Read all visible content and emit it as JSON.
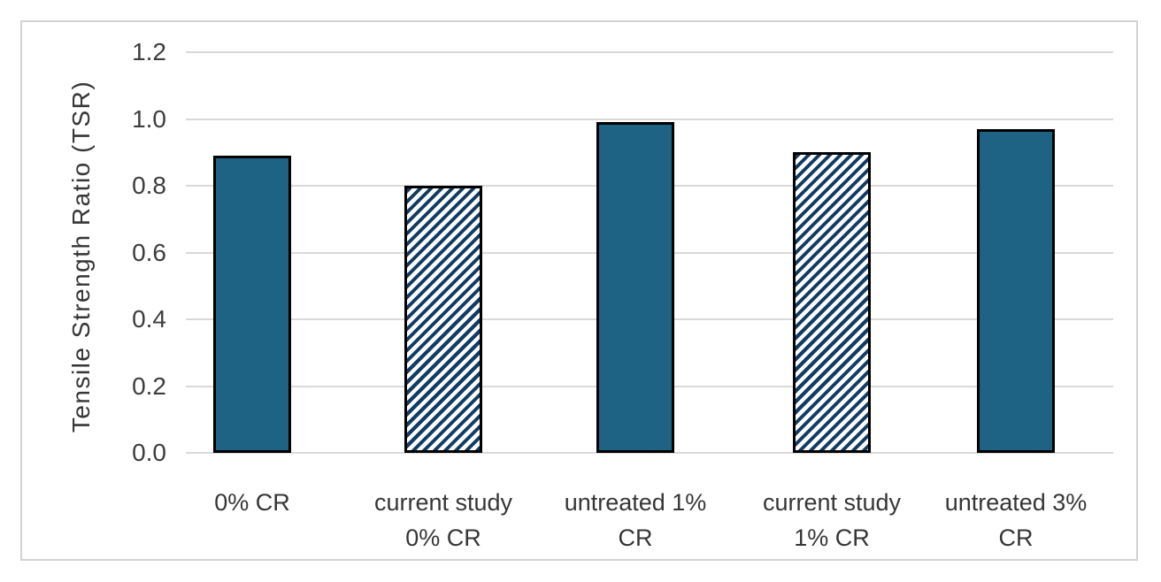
{
  "chart_data": {
    "type": "bar",
    "title": "",
    "xlabel": "",
    "ylabel": "Tensile Strength Ratio (TSR)",
    "categories": [
      "0% CR",
      "current study 0% CR",
      "untreated 1% CR",
      "current study 1% CR",
      "untreated 3% CR"
    ],
    "values": [
      0.89,
      0.8,
      0.99,
      0.9,
      0.97
    ],
    "bar_styles": [
      "solid",
      "hatched",
      "solid",
      "hatched",
      "solid"
    ],
    "ylim": [
      0,
      1.2
    ],
    "ytick_step": 0.2,
    "ytick_labels": [
      "0.0",
      "0.2",
      "0.4",
      "0.6",
      "0.8",
      "1.0",
      "1.2"
    ],
    "grid": true,
    "legend_position": "none",
    "colors": {
      "solid_bar_fill": "#1e6284",
      "hatch_stripe": "#123c63",
      "bar_border": "#000000",
      "gridline": "#d9d9d9",
      "frame_border": "#d3d3d3",
      "label_text": "#363636"
    }
  }
}
